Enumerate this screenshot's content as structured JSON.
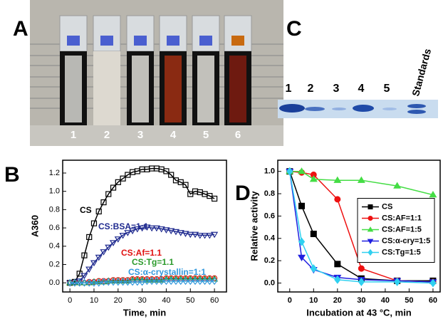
{
  "panel_labels": [
    "A",
    "B",
    "C",
    "D"
  ],
  "cuvette_labels": [
    "1",
    "2",
    "3",
    "4",
    "5",
    "6"
  ],
  "gel_labels": [
    "1",
    "2",
    "3",
    "4",
    "5",
    "Standards"
  ],
  "chart_data": [
    {
      "type": "line",
      "legend": "inline",
      "filled": false,
      "x_label": "Time, min",
      "y_label": "A360",
      "x": [
        0,
        2,
        4,
        6,
        8,
        10,
        12,
        14,
        16,
        18,
        20,
        22,
        24,
        26,
        28,
        30,
        32,
        34,
        36,
        38,
        40,
        42,
        44,
        46,
        48,
        50,
        52,
        54,
        56,
        58,
        60
      ],
      "xlim": [
        -3,
        65
      ],
      "xticks": [
        0,
        10,
        20,
        30,
        40,
        50,
        60
      ],
      "ylim": [
        -0.1,
        1.34
      ],
      "yticks": [
        {
          "value": 0,
          "label": "0.0"
        },
        {
          "value": 0.2,
          "label": "0.2"
        },
        {
          "value": 0.4,
          "label": "0.4"
        },
        {
          "value": 0.6,
          "label": "0.6"
        },
        {
          "value": 0.8,
          "label": "0.8"
        },
        {
          "value": 1,
          "label": "1.0"
        },
        {
          "value": 1.2,
          "label": "1.2"
        }
      ],
      "series": [
        {
          "name": "CS",
          "color": "#000000",
          "marker": "square",
          "values": [
            0,
            0.01,
            0.1,
            0.3,
            0.5,
            0.65,
            0.78,
            0.88,
            0.97,
            1.04,
            1.1,
            1.14,
            1.18,
            1.21,
            1.22,
            1.24,
            1.24,
            1.25,
            1.25,
            1.24,
            1.22,
            1.18,
            1.12,
            1.1,
            1.07,
            0.97,
            1.0,
            0.99,
            0.97,
            0.95,
            0.92
          ]
        },
        {
          "name": "CS:BSA=1:1",
          "color": "#1f2a8f",
          "marker": "triangle-down",
          "values": [
            0,
            0,
            0.02,
            0.08,
            0.15,
            0.22,
            0.28,
            0.34,
            0.39,
            0.44,
            0.48,
            0.52,
            0.55,
            0.57,
            0.59,
            0.6,
            0.61,
            0.6,
            0.6,
            0.59,
            0.58,
            0.57,
            0.56,
            0.55,
            0.54,
            0.53,
            0.53,
            0.52,
            0.52,
            0.52,
            0.53
          ]
        },
        {
          "name": "CS:Af=1.1",
          "color": "#e01010",
          "marker": "circle",
          "values": [
            0,
            0,
            0,
            0,
            0.01,
            0.01,
            0.02,
            0.02,
            0.02,
            0.03,
            0.03,
            0.03,
            0.03,
            0.04,
            0.04,
            0.04,
            0.04,
            0.04,
            0.04,
            0.04,
            0.05,
            0.05,
            0.05,
            0.05,
            0.05,
            0.05,
            0.05,
            0.05,
            0.05,
            0.05,
            0.05
          ]
        },
        {
          "name": "CS:Tg=1.1",
          "color": "#2a9a2a",
          "marker": "triangle",
          "values": [
            0,
            0,
            0,
            0,
            0,
            0.01,
            0.01,
            0.01,
            0.02,
            0.02,
            0.02,
            0.02,
            0.02,
            0.03,
            0.03,
            0.03,
            0.03,
            0.03,
            0.03,
            0.03,
            0.04,
            0.04,
            0.04,
            0.04,
            0.04,
            0.04,
            0.04,
            0.04,
            0.04,
            0.04,
            0.04
          ]
        },
        {
          "name": "CS:α-crystallin=1:1",
          "color": "#3399dd",
          "marker": "diamond",
          "values": [
            0,
            0,
            0,
            0,
            0,
            0,
            0,
            0.01,
            0.01,
            0.01,
            0.01,
            0.01,
            0.01,
            0.01,
            0.01,
            0.01,
            0.02,
            0.02,
            0.02,
            0.02,
            0.02,
            0.02,
            0.02,
            0.02,
            0.02,
            0.02,
            0.02,
            0.02,
            0.02,
            0.02,
            0.02
          ]
        }
      ]
    },
    {
      "type": "line",
      "legend": "center right",
      "filled": true,
      "x_label": "Incubation at 43 °C, min",
      "y_label": "Relative activity",
      "x": [
        0,
        5,
        10,
        20,
        30,
        45,
        60
      ],
      "xlim": [
        -5,
        63
      ],
      "xticks": [
        0,
        10,
        20,
        30,
        40,
        50,
        60
      ],
      "ylim": [
        -0.08,
        1.1
      ],
      "yticks": [
        {
          "value": 0,
          "label": "0.0"
        },
        {
          "value": 0.2,
          "label": "0.2"
        },
        {
          "value": 0.4,
          "label": "0.4"
        },
        {
          "value": 0.6,
          "label": "0.6"
        },
        {
          "value": 0.8,
          "label": "0.8"
        },
        {
          "value": 1,
          "label": "1.0"
        }
      ],
      "series": [
        {
          "name": "CS",
          "color": "#000000",
          "marker": "square",
          "values": [
            1.0,
            0.69,
            0.44,
            0.17,
            0.04,
            0.02,
            0.02
          ]
        },
        {
          "name": "CS:AF=1:1",
          "color": "#ee1111",
          "marker": "circle",
          "values": [
            1.0,
            0.99,
            0.97,
            0.75,
            0.13,
            0.02,
            0.01
          ]
        },
        {
          "name": "CS:AF=1:5",
          "color": "#44dd44",
          "marker": "triangle",
          "values": [
            1.0,
            1.0,
            0.93,
            0.92,
            0.92,
            0.87,
            0.79
          ]
        },
        {
          "name": "CS:α-cry=1:5",
          "color": "#2020e0",
          "marker": "triangle-down",
          "values": [
            1.0,
            0.23,
            0.12,
            0.05,
            0.03,
            0.02,
            0.01
          ]
        },
        {
          "name": "CS:Tg=1:5",
          "color": "#30d0f0",
          "marker": "diamond",
          "values": [
            1.0,
            0.37,
            0.13,
            0.03,
            0.01,
            0.01,
            0.0
          ]
        }
      ]
    }
  ]
}
